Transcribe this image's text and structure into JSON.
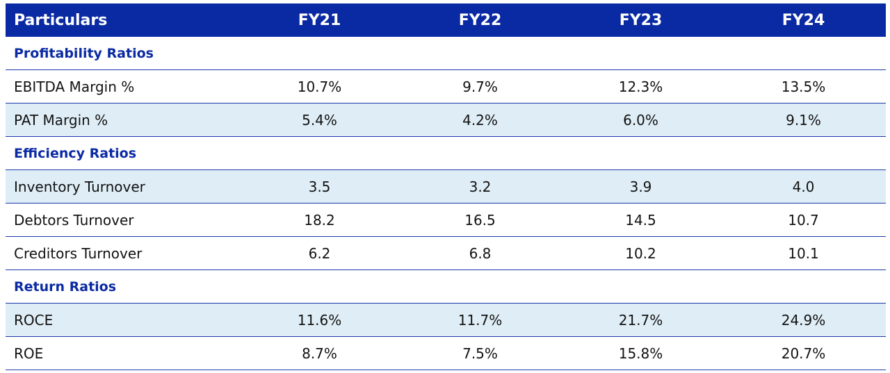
{
  "header": {
    "particulars": "Particulars",
    "years": [
      "FY21",
      "FY22",
      "FY23",
      "FY24"
    ]
  },
  "colors": {
    "header_bg": "#0a2aa3",
    "section_text": "#0a2aa3",
    "shade_row": "#dfeef6",
    "rule": "#1b38a8"
  },
  "sections": [
    {
      "title": "Profitability Ratios",
      "rows": [
        {
          "label": "EBITDA Margin %",
          "values": [
            "10.7%",
            "9.7%",
            "12.3%",
            "13.5%"
          ],
          "shaded": false
        },
        {
          "label": "PAT Margin %",
          "values": [
            "5.4%",
            "4.2%",
            "6.0%",
            "9.1%"
          ],
          "shaded": true
        }
      ]
    },
    {
      "title": "Efficiency Ratios",
      "rows": [
        {
          "label": "Inventory Turnover",
          "values": [
            "3.5",
            "3.2",
            "3.9",
            "4.0"
          ],
          "shaded": true
        },
        {
          "label": "Debtors Turnover",
          "values": [
            "18.2",
            "16.5",
            "14.5",
            "10.7"
          ],
          "shaded": false
        },
        {
          "label": "Creditors Turnover",
          "values": [
            "6.2",
            "6.8",
            "10.2",
            "10.1"
          ],
          "shaded": false
        }
      ]
    },
    {
      "title": "Return Ratios",
      "rows": [
        {
          "label": "ROCE",
          "values": [
            "11.6%",
            "11.7%",
            "21.7%",
            "24.9%"
          ],
          "shaded": true
        },
        {
          "label": "ROE",
          "values": [
            "8.7%",
            "7.5%",
            "15.8%",
            "20.7%"
          ],
          "shaded": false
        }
      ]
    }
  ]
}
